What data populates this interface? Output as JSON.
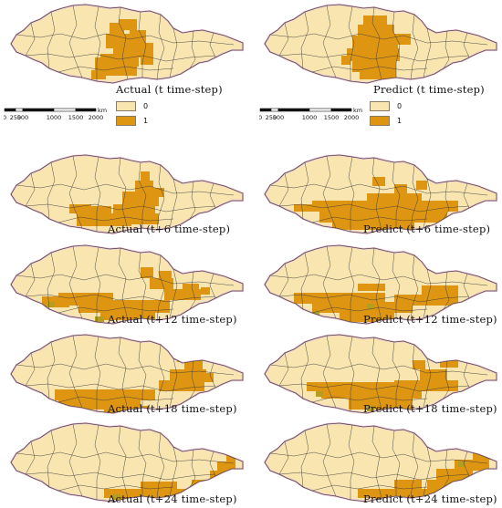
{
  "colors": {
    "class0_fill": "#f8e5b0",
    "class1_fill": "#de9512",
    "boundary": "#3a3a3a",
    "outline": "#4a4a4a",
    "pink_edge": "#f2c8d8",
    "olive_patch": "#b59d1e"
  },
  "scalebar": {
    "ticks": [
      "0",
      "250",
      "500",
      "1000",
      "1500",
      "2000"
    ],
    "unit": "km"
  },
  "legend": {
    "items": [
      {
        "label": "0",
        "value": 0
      },
      {
        "label": "1",
        "value": 1
      }
    ]
  },
  "panels": [
    {
      "caption": "Actual (t time-step)",
      "row": 0,
      "col": 0,
      "pattern": "a0",
      "scalebar": true,
      "legend": true
    },
    {
      "caption": "Predict (t time-step)",
      "row": 0,
      "col": 1,
      "pattern": "p0",
      "scalebar": true,
      "legend": true
    },
    {
      "caption": "Actual (t+6 time-step)",
      "row": 1,
      "col": 0,
      "pattern": "a6"
    },
    {
      "caption": "Predict (t+6 time-step)",
      "row": 1,
      "col": 1,
      "pattern": "p6"
    },
    {
      "caption": "Actual (t+12 time-step)",
      "row": 2,
      "col": 0,
      "pattern": "a12"
    },
    {
      "caption": "Predict (t+12 time-step)",
      "row": 2,
      "col": 1,
      "pattern": "p12"
    },
    {
      "caption": "Actual (t+18 time-step)",
      "row": 3,
      "col": 0,
      "pattern": "a18"
    },
    {
      "caption": "Predict (t+18 time-step)",
      "row": 3,
      "col": 1,
      "pattern": "p18"
    },
    {
      "caption": "Actual (t+24 time-step)",
      "row": 4,
      "col": 0,
      "pattern": "a24"
    },
    {
      "caption": "Predict (t+24 time-step)",
      "row": 4,
      "col": 1,
      "pattern": "p24"
    }
  ]
}
